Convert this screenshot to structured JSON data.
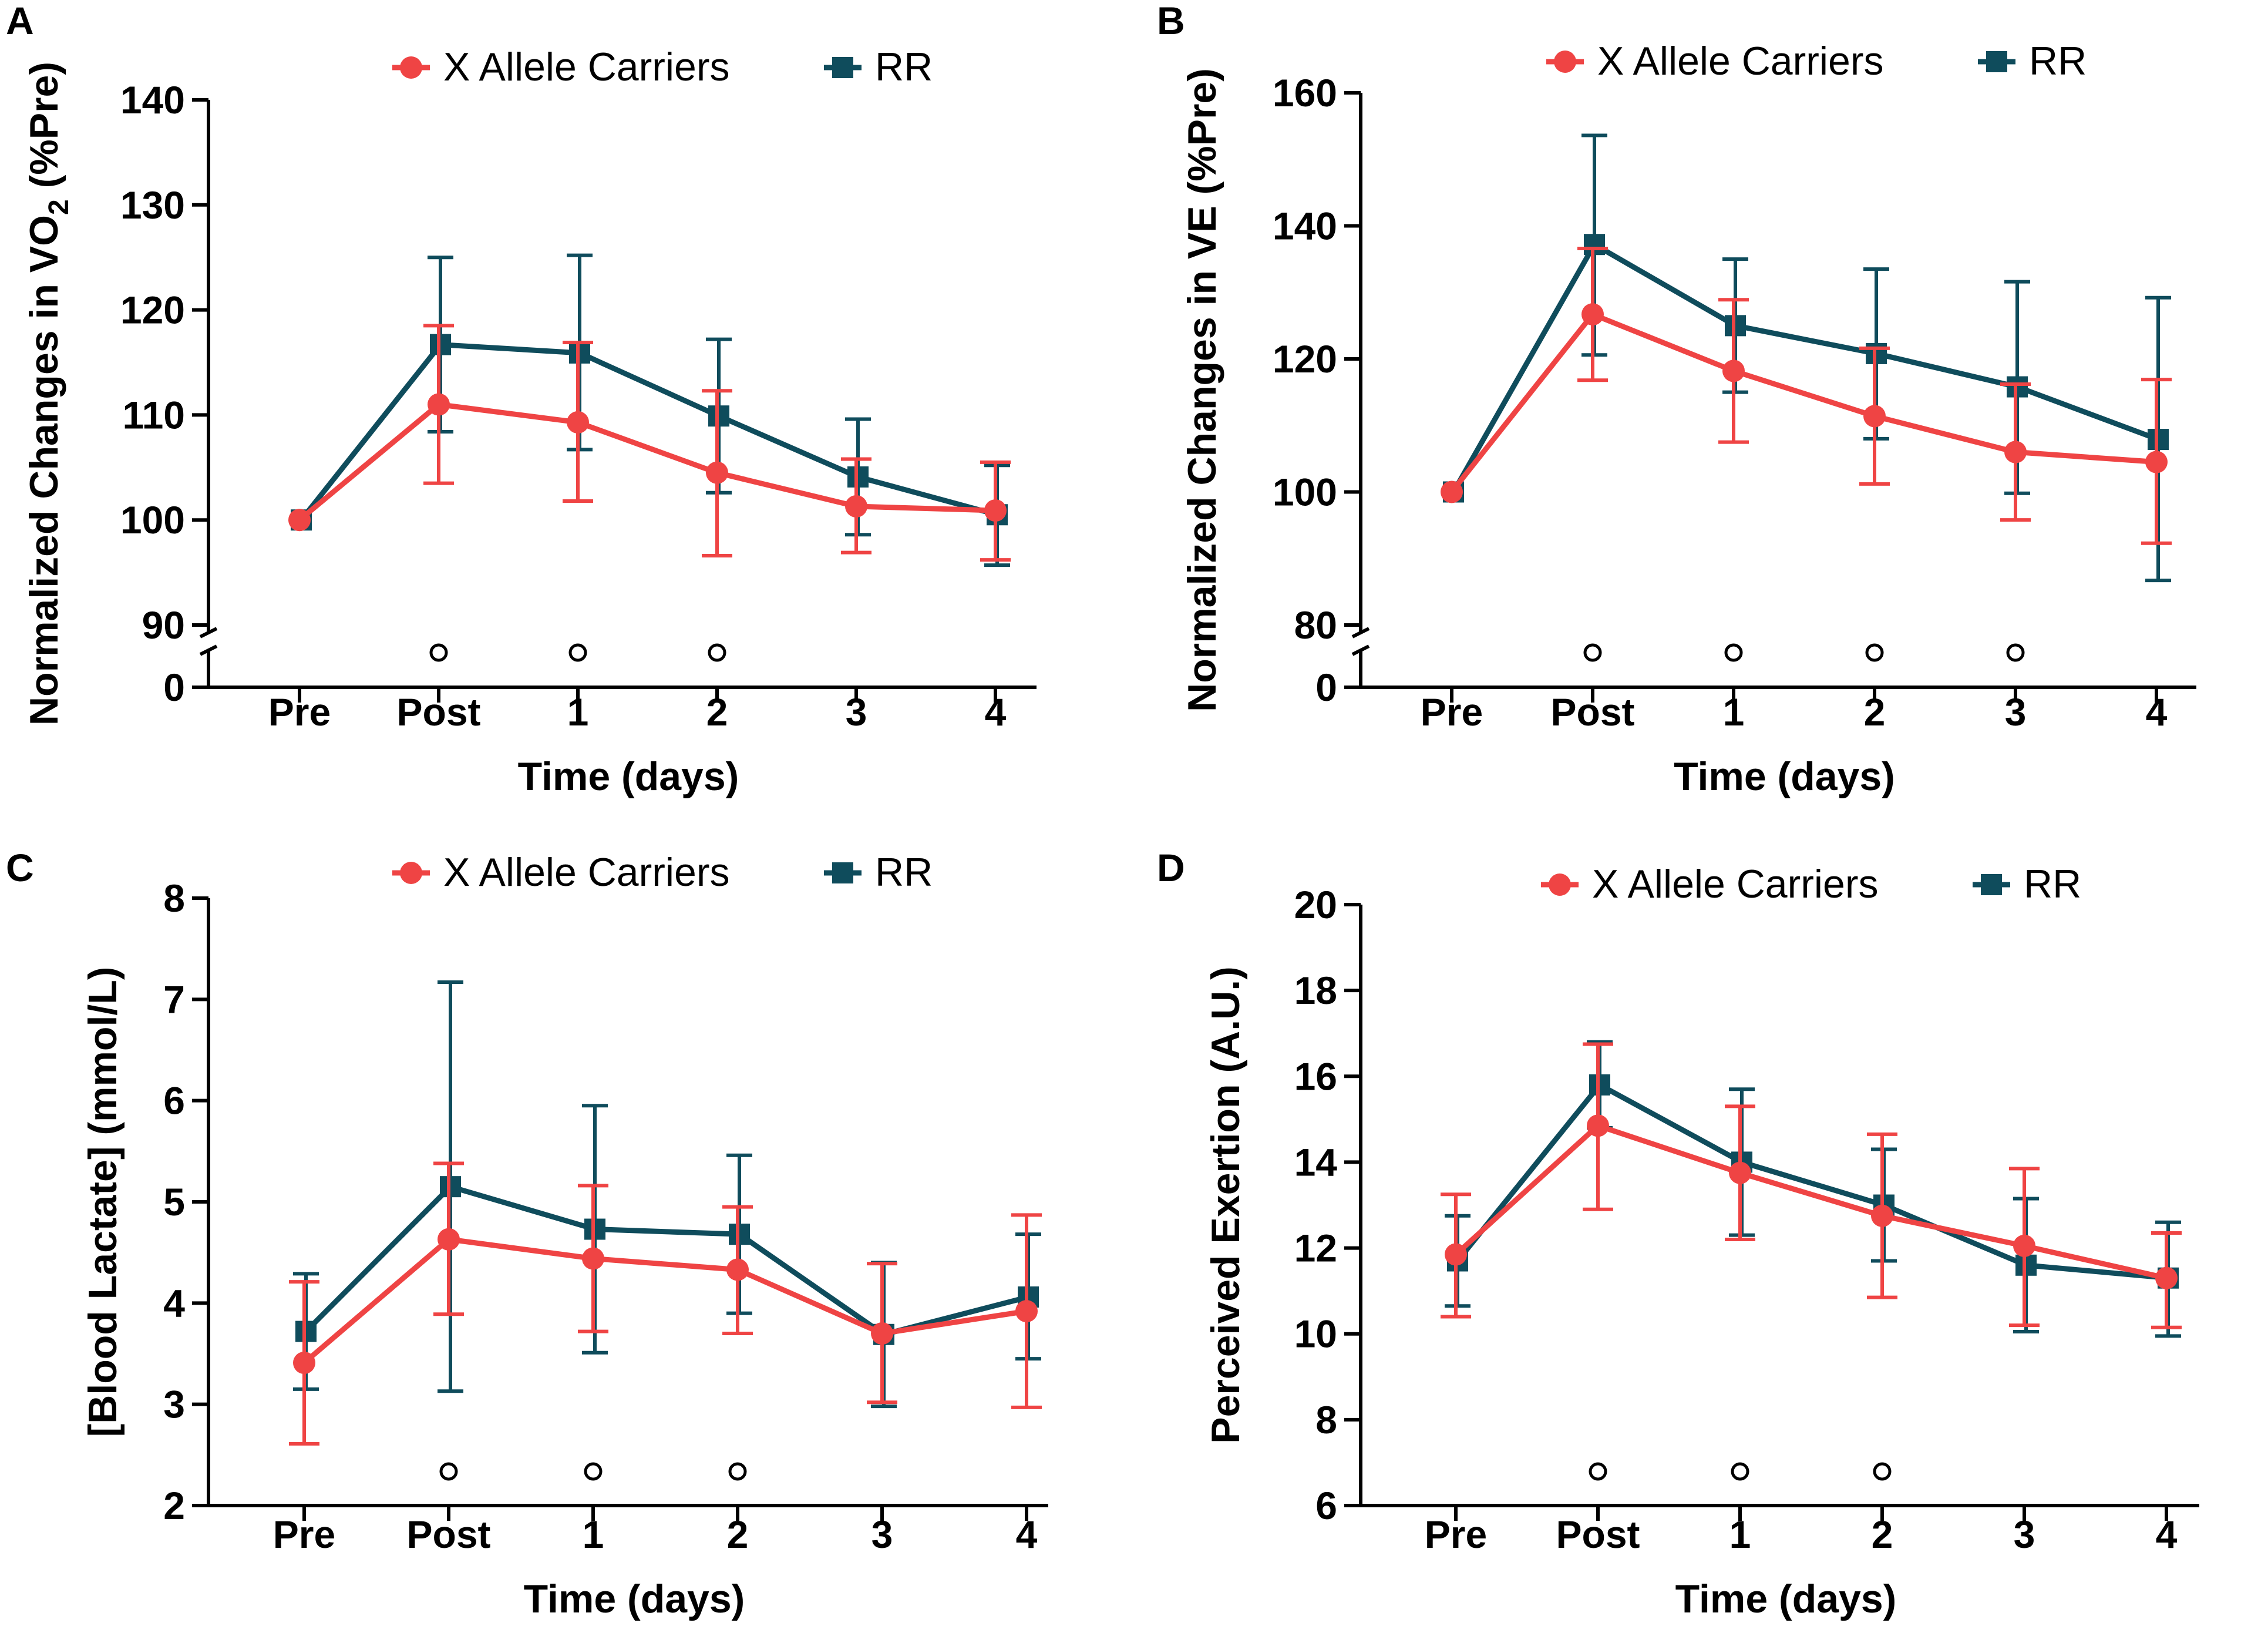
{
  "figure": {
    "colors": {
      "x_allele": "#ef4444",
      "rr": "#0f4c5c",
      "axis": "#000000"
    },
    "significance_symbol": "○"
  },
  "chart_data": [
    {
      "panel": "A",
      "type": "line",
      "categories": [
        "Pre",
        "Post",
        "1",
        "2",
        "3",
        "4"
      ],
      "xlabel": "Time (days)",
      "ylabel": "Normalized Changes in VO",
      "ylabel_sub": "2",
      "ylabel_suffix": " (%Pre)",
      "ylim": [
        90,
        140
      ],
      "yticks": [
        90,
        100,
        110,
        120,
        130,
        140
      ],
      "y_break_zero": "0",
      "legend": [
        "X Allele Carriers",
        "RR"
      ],
      "series": [
        {
          "name": "X Allele Carriers",
          "color": "#ef4444",
          "marker": "circle",
          "values": [
            100,
            111,
            109.3,
            104.5,
            101.3,
            100.9
          ],
          "err_low": [
            100,
            103.5,
            101.8,
            96.6,
            96.9,
            96.2
          ],
          "err_high": [
            100,
            118.5,
            116.9,
            112.3,
            105.8,
            105.5
          ]
        },
        {
          "name": "RR",
          "color": "#0f4c5c",
          "marker": "square",
          "values": [
            100,
            116.7,
            115.9,
            109.9,
            104.1,
            100.5
          ],
          "err_low": [
            100,
            108.4,
            106.7,
            102.6,
            98.6,
            95.7
          ],
          "err_high": [
            100,
            125,
            125.2,
            117.2,
            109.6,
            105.2
          ]
        }
      ],
      "significance": [
        1,
        2,
        3
      ]
    },
    {
      "panel": "B",
      "type": "line",
      "categories": [
        "Pre",
        "Post",
        "1",
        "2",
        "3",
        "4"
      ],
      "xlabel": "Time (days)",
      "ylabel": "Normalized Changes in VE (%Pre)",
      "ylim": [
        80,
        160
      ],
      "yticks": [
        80,
        100,
        120,
        140,
        160
      ],
      "y_break_zero": "0",
      "legend": [
        "X Allele Carriers",
        "RR"
      ],
      "series": [
        {
          "name": "X Allele Carriers",
          "color": "#ef4444",
          "marker": "circle",
          "values": [
            100,
            126.7,
            118.2,
            111.4,
            106,
            104.5
          ],
          "err_low": [
            100,
            116.8,
            107.5,
            101.2,
            95.8,
            92.3
          ],
          "err_high": [
            100,
            136.6,
            128.9,
            121.6,
            116.2,
            116.9
          ]
        },
        {
          "name": "RR",
          "color": "#0f4c5c",
          "marker": "square",
          "values": [
            100,
            137.2,
            125,
            120.8,
            115.8,
            107.9
          ],
          "err_low": [
            100,
            120.6,
            115,
            108,
            99.8,
            86.7
          ],
          "err_high": [
            100,
            153.6,
            135,
            133.5,
            131.6,
            129.2
          ]
        }
      ],
      "significance": [
        1,
        2,
        3,
        4
      ]
    },
    {
      "panel": "C",
      "type": "line",
      "categories": [
        "Pre",
        "Post",
        "1",
        "2",
        "3",
        "4"
      ],
      "xlabel": "Time (days)",
      "ylabel": "[Blood Lactate] (mmol/L)",
      "ylim": [
        2,
        8
      ],
      "yticks": [
        2,
        3,
        4,
        5,
        6,
        7,
        8
      ],
      "legend": [
        "X Allele Carriers",
        "RR"
      ],
      "series": [
        {
          "name": "X Allele Carriers",
          "color": "#ef4444",
          "marker": "circle",
          "values": [
            3.41,
            4.63,
            4.44,
            4.33,
            3.7,
            3.92
          ],
          "err_low": [
            2.61,
            3.89,
            3.72,
            3.7,
            3.02,
            2.97
          ],
          "err_high": [
            4.21,
            5.38,
            5.16,
            4.95,
            4.39,
            4.87
          ]
        },
        {
          "name": "RR",
          "color": "#0f4c5c",
          "marker": "square",
          "values": [
            3.72,
            5.15,
            4.73,
            4.68,
            3.69,
            4.06
          ],
          "err_low": [
            3.15,
            3.13,
            3.51,
            3.9,
            2.98,
            3.45
          ],
          "err_high": [
            4.29,
            7.17,
            5.95,
            5.46,
            4.4,
            4.68
          ]
        }
      ],
      "significance": [
        1,
        2,
        3
      ]
    },
    {
      "panel": "D",
      "type": "line",
      "categories": [
        "Pre",
        "Post",
        "1",
        "2",
        "3",
        "4"
      ],
      "xlabel": "Time (days)",
      "ylabel": "Perceived Exertion (A.U.)",
      "ylim": [
        6,
        20
      ],
      "yticks": [
        6,
        8,
        10,
        12,
        14,
        16,
        18,
        20
      ],
      "legend": [
        "X Allele Carriers",
        "RR"
      ],
      "series": [
        {
          "name": "X Allele Carriers",
          "color": "#ef4444",
          "marker": "circle",
          "values": [
            11.85,
            14.85,
            13.75,
            12.75,
            12.05,
            11.3
          ],
          "err_low": [
            10.4,
            12.9,
            12.2,
            10.85,
            10.2,
            10.15
          ],
          "err_high": [
            13.25,
            16.75,
            15.3,
            14.65,
            13.85,
            12.35
          ]
        },
        {
          "name": "RR",
          "color": "#0f4c5c",
          "marker": "square",
          "values": [
            11.7,
            15.8,
            14.0,
            13.0,
            11.6,
            11.3
          ],
          "err_low": [
            10.65,
            14.8,
            12.3,
            11.7,
            10.05,
            9.95
          ],
          "err_high": [
            12.75,
            16.8,
            15.7,
            14.3,
            13.15,
            12.6
          ]
        }
      ],
      "significance": [
        1,
        2,
        3
      ]
    }
  ]
}
